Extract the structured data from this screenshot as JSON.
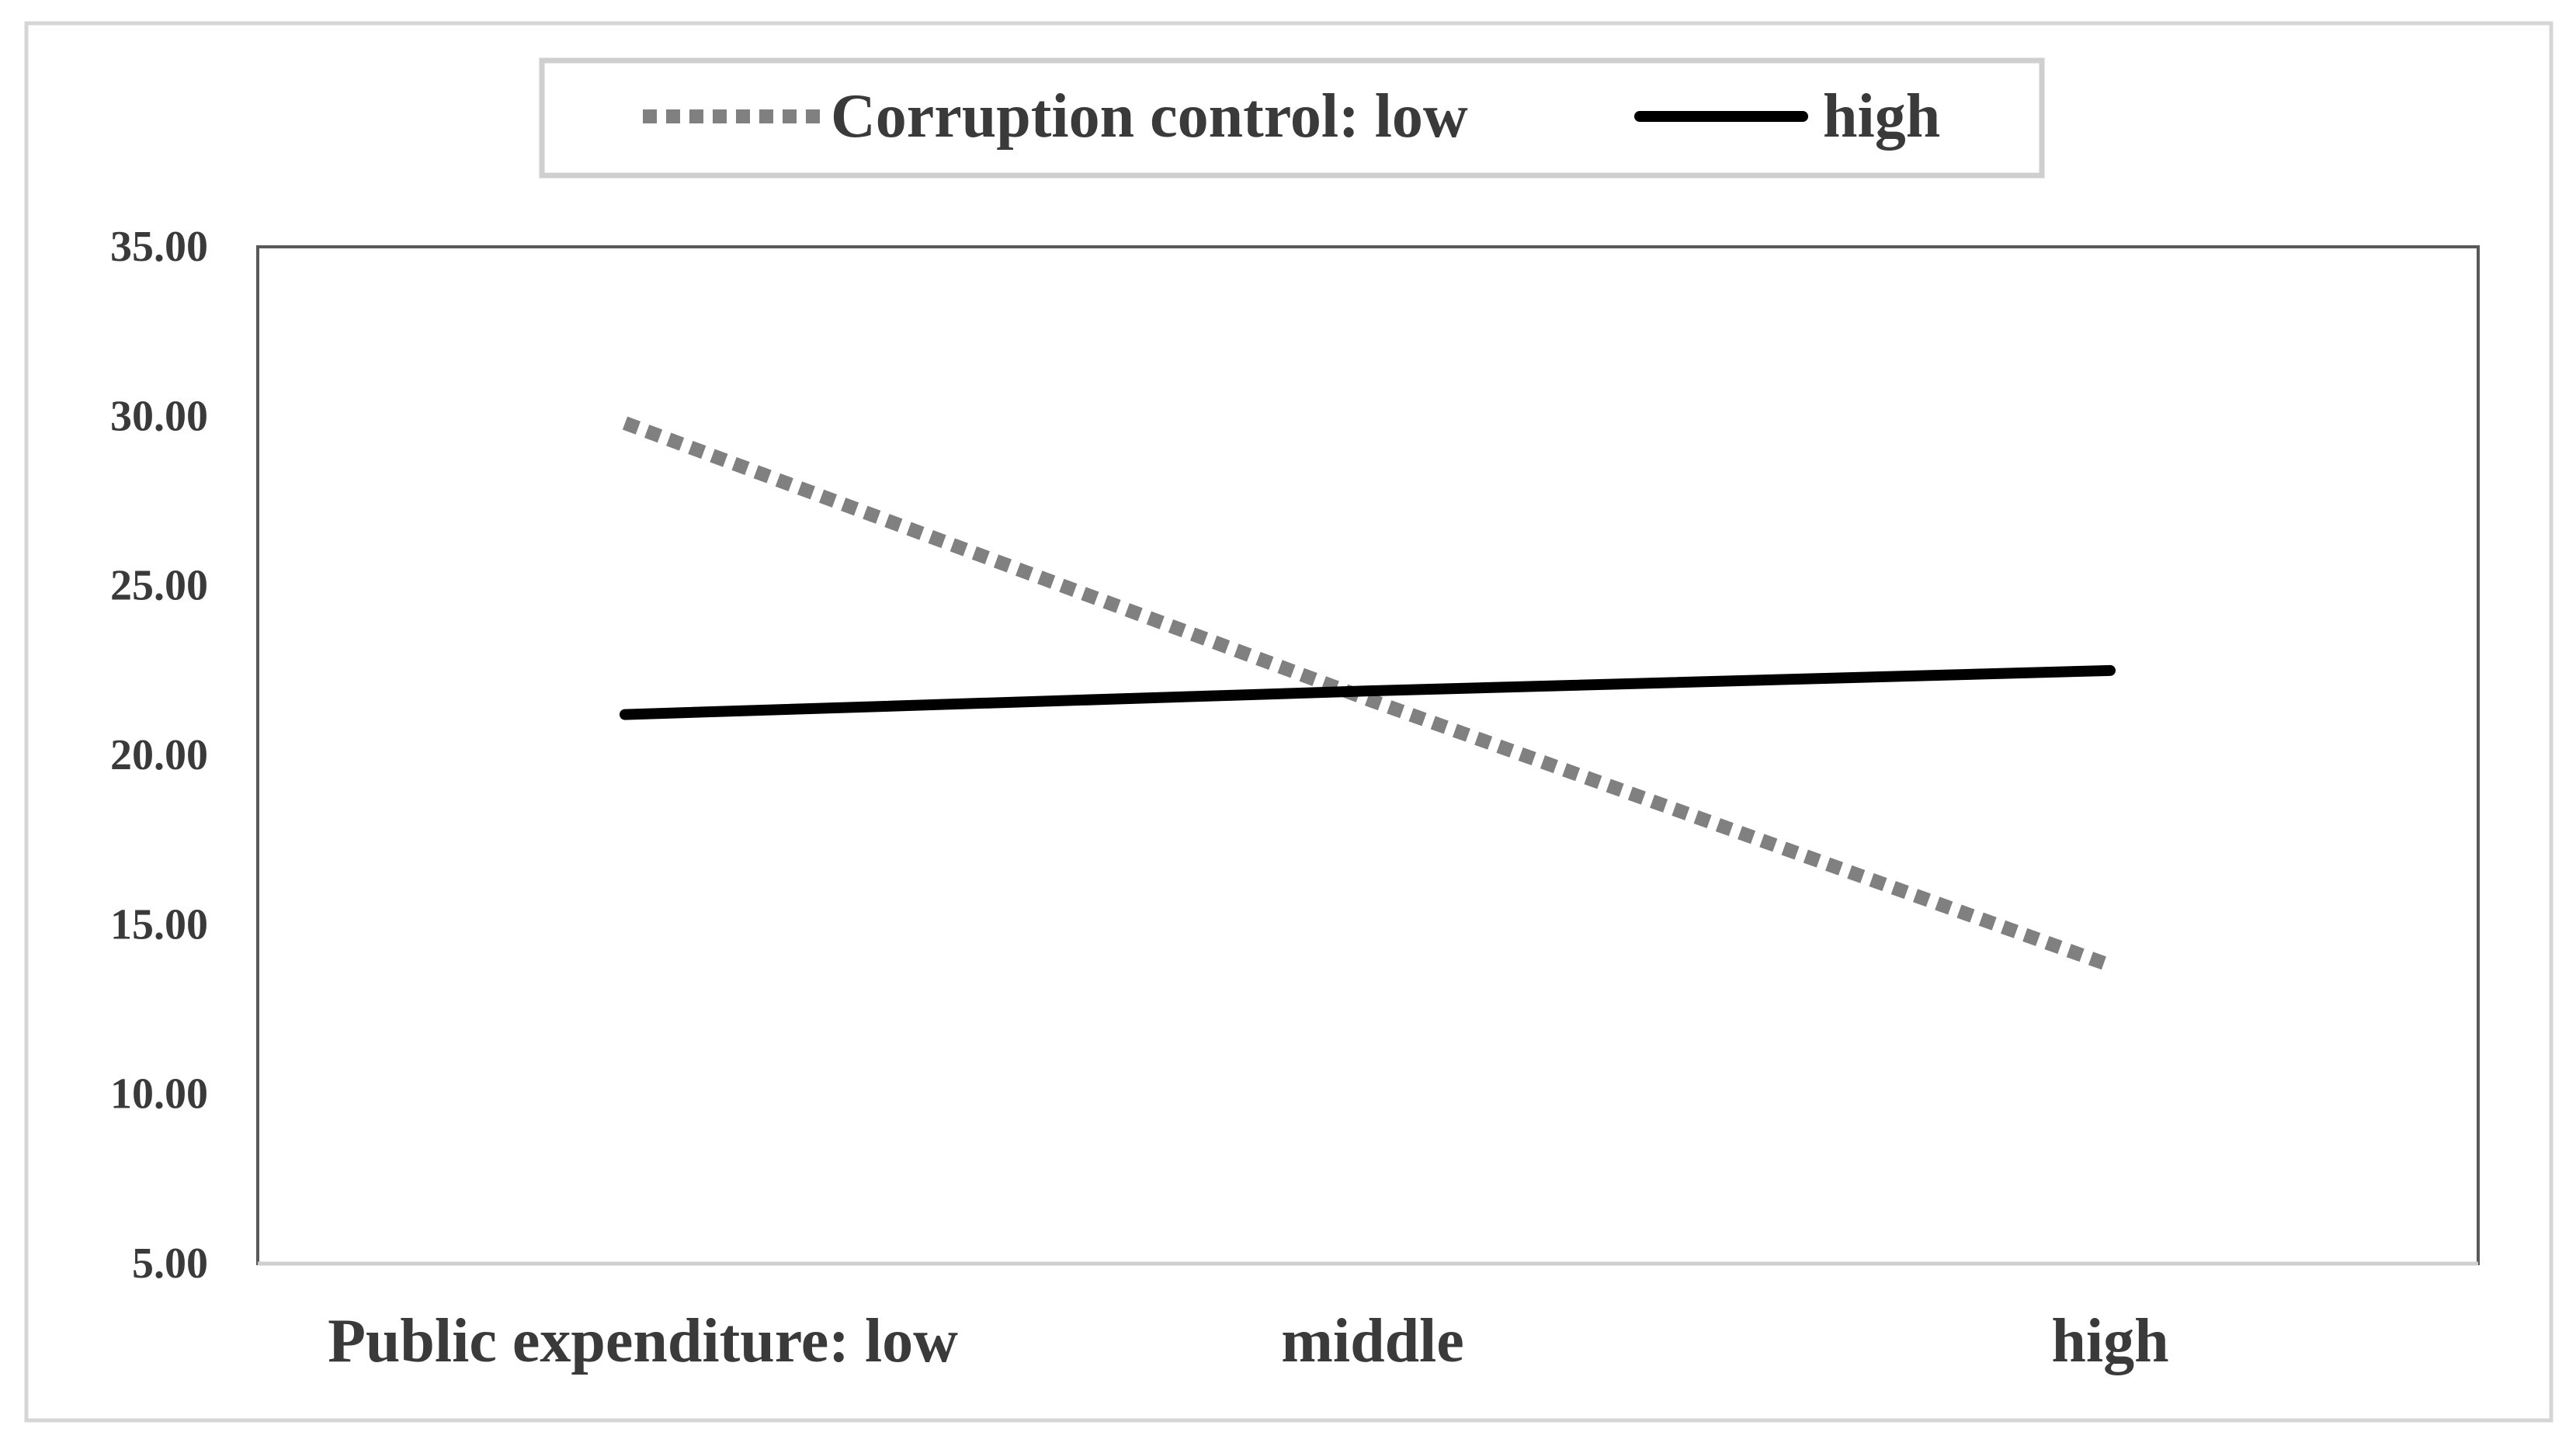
{
  "chart_data": {
    "type": "line",
    "title": "",
    "xlabel": "",
    "ylabel": "",
    "categories": [
      "Public expenditure: low",
      "middle",
      "high"
    ],
    "series": [
      {
        "name": "Corruption control: low",
        "values": [
          29.8,
          21.6,
          13.8
        ],
        "color": "#808080",
        "style": "dotted"
      },
      {
        "name": "high",
        "values": [
          21.2,
          21.9,
          22.5
        ],
        "color": "#000000",
        "style": "solid"
      }
    ],
    "ylim": [
      5,
      35
    ],
    "yticks": [
      "5.00",
      "10.00",
      "15.00",
      "20.00",
      "25.00",
      "30.00",
      "35.00"
    ],
    "grid": false,
    "legend_position": "top-center"
  }
}
